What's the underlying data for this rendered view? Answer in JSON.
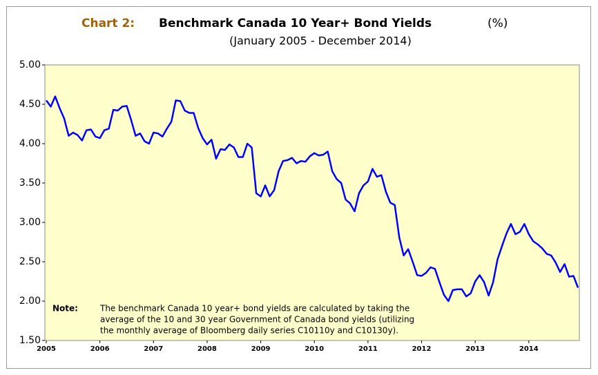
{
  "chart_data": {
    "type": "line",
    "title_label": "Chart 2:",
    "title": "Benchmark Canada 10 Year+ Bond Yields",
    "title_unit": "(%)",
    "subtitle": "(January 2005 - December 2014)",
    "categories": [
      "2005",
      null,
      null,
      null,
      null,
      null,
      null,
      null,
      null,
      null,
      null,
      null,
      "2006",
      null,
      null,
      null,
      null,
      null,
      null,
      null,
      null,
      null,
      null,
      null,
      "2007",
      null,
      null,
      null,
      null,
      null,
      null,
      null,
      null,
      null,
      null,
      null,
      "2008",
      null,
      null,
      null,
      null,
      null,
      null,
      null,
      null,
      null,
      null,
      null,
      "2009",
      null,
      null,
      null,
      null,
      null,
      null,
      null,
      null,
      null,
      null,
      null,
      "2010",
      null,
      null,
      null,
      null,
      null,
      null,
      null,
      null,
      null,
      null,
      null,
      "2011",
      null,
      null,
      null,
      null,
      null,
      null,
      null,
      null,
      null,
      null,
      null,
      "2012",
      null,
      null,
      null,
      null,
      null,
      null,
      null,
      null,
      null,
      null,
      null,
      "2013",
      null,
      null,
      null,
      null,
      null,
      null,
      null,
      null,
      null,
      null,
      null,
      "2014",
      null,
      null,
      null,
      null,
      null,
      null,
      null,
      null,
      null,
      null,
      null
    ],
    "series": [
      {
        "name": "Benchmark Canada 10 Year+ Bond Yields",
        "color": "#0000ff",
        "values": [
          4.55,
          4.47,
          4.6,
          4.45,
          4.32,
          4.1,
          4.14,
          4.11,
          4.04,
          4.17,
          4.18,
          4.09,
          4.07,
          4.17,
          4.19,
          4.43,
          4.42,
          4.47,
          4.48,
          4.3,
          4.1,
          4.13,
          4.03,
          4.0,
          4.14,
          4.13,
          4.09,
          4.19,
          4.28,
          4.55,
          4.54,
          4.42,
          4.39,
          4.39,
          4.2,
          4.07,
          3.99,
          4.05,
          3.81,
          3.93,
          3.92,
          3.99,
          3.95,
          3.83,
          3.83,
          4.0,
          3.95,
          3.37,
          3.33,
          3.47,
          3.33,
          3.41,
          3.65,
          3.78,
          3.79,
          3.82,
          3.75,
          3.78,
          3.77,
          3.84,
          3.88,
          3.85,
          3.86,
          3.9,
          3.65,
          3.55,
          3.5,
          3.29,
          3.24,
          3.14,
          3.37,
          3.47,
          3.52,
          3.68,
          3.58,
          3.6,
          3.39,
          3.25,
          3.22,
          2.81,
          2.58,
          2.66,
          2.5,
          2.33,
          2.32,
          2.36,
          2.43,
          2.41,
          2.24,
          2.08,
          2.0,
          2.14,
          2.15,
          2.15,
          2.06,
          2.1,
          2.25,
          2.33,
          2.24,
          2.07,
          2.24,
          2.53,
          2.7,
          2.86,
          2.98,
          2.85,
          2.88,
          2.98,
          2.85,
          2.76,
          2.72,
          2.67,
          2.6,
          2.58,
          2.49,
          2.37,
          2.47,
          2.31,
          2.32,
          2.17
        ]
      }
    ],
    "ylim": [
      1.5,
      5
    ],
    "yticks": [
      {
        "value": 1.5,
        "label": "1.50"
      },
      {
        "value": 2,
        "label": "2.00"
      },
      {
        "value": 2.5,
        "label": "2.50"
      },
      {
        "value": 3,
        "label": "3.00"
      },
      {
        "value": 3.5,
        "label": "3.50"
      },
      {
        "value": 4,
        "label": "4.00"
      },
      {
        "value": 4.5,
        "label": "4.50"
      },
      {
        "value": 5,
        "label": "5.00"
      }
    ],
    "grid": false,
    "plot_color": "#ffffcc",
    "note_label": "Note:",
    "note_lines": [
      "The benchmark Canada 10 year+ bond yields are calculated by taking the",
      "average of the 10 and 30 year Government of Canada bond yields (utilizing",
      "the monthly average of Bloomberg daily series C10110y and C10130y)."
    ]
  }
}
